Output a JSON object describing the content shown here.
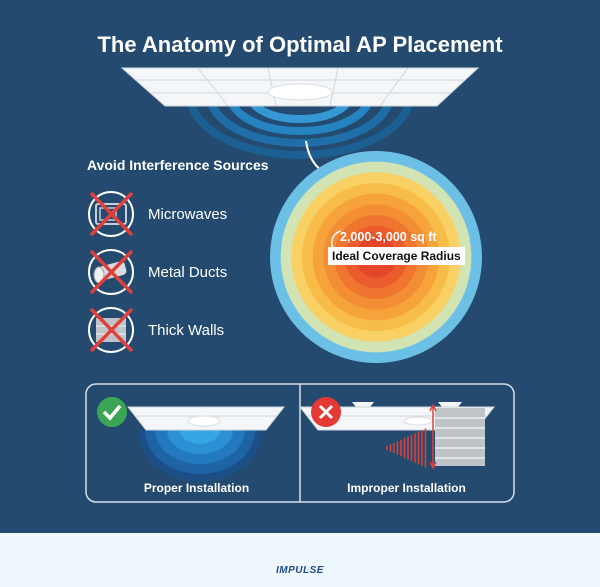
{
  "title": "The Anatomy of Optimal AP Placement",
  "interference": {
    "heading": "Avoid Interference Sources",
    "items": [
      {
        "label": "Microwaves",
        "icon": "microwave-icon"
      },
      {
        "label": "Metal Ducts",
        "icon": "metal-duct-icon"
      },
      {
        "label": "Thick Walls",
        "icon": "brick-wall-icon"
      }
    ]
  },
  "coverage": {
    "area": "2,000-3,000 sq ft",
    "label": "Ideal Coverage Radius",
    "ring_colors": [
      "#6cc0e6",
      "#d3e4b4",
      "#f9d063",
      "#f8bc48",
      "#f6a33c",
      "#f38e34",
      "#ef7530",
      "#ea5c2c",
      "#e5452a"
    ]
  },
  "installation": {
    "proper": {
      "label": "Proper Installation",
      "icon": "check-icon",
      "color": "#3aa655"
    },
    "improper": {
      "label": "Improper Installation",
      "icon": "x-icon",
      "color": "#e53935"
    }
  },
  "footer": {
    "brand": "IMPULSE"
  },
  "colors": {
    "background": "#244a6f",
    "footer": "#eef7fd",
    "cross": "#e0403c"
  }
}
